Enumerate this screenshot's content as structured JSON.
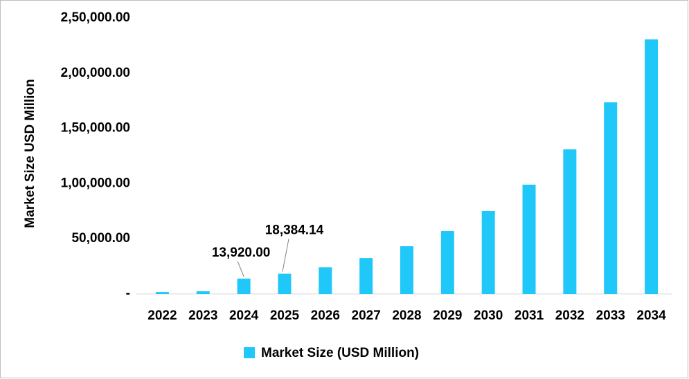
{
  "chart_data": {
    "type": "bar",
    "y_label": "Market Size USD Million",
    "categories": [
      "2022",
      "2023",
      "2024",
      "2025",
      "2026",
      "2027",
      "2028",
      "2029",
      "2030",
      "2031",
      "2032",
      "2033",
      "2034"
    ],
    "series": [
      {
        "name": "Market Size (USD Million)",
        "color": "#1fc8f8",
        "values": [
          1800,
          2400,
          13920,
          18384.14,
          24200,
          32500,
          43200,
          57000,
          75200,
          99000,
          131000,
          173600,
          230600
        ],
        "value_labels": [
          null,
          null,
          "13,920.00",
          "18,384.14",
          null,
          null,
          null,
          null,
          null,
          null,
          null,
          null,
          null
        ]
      }
    ],
    "ylim": [
      0,
      250000
    ],
    "yticks": [
      {
        "value": 0,
        "label": "-"
      },
      {
        "value": 50000,
        "label": "50,000.00"
      },
      {
        "value": 100000,
        "label": "1,00,000.00"
      },
      {
        "value": 150000,
        "label": "1,50,000.00"
      },
      {
        "value": 200000,
        "label": "2,00,000.00"
      },
      {
        "value": 250000,
        "label": "2,50,000.00"
      }
    ],
    "grid": false,
    "legend": "bottom"
  }
}
